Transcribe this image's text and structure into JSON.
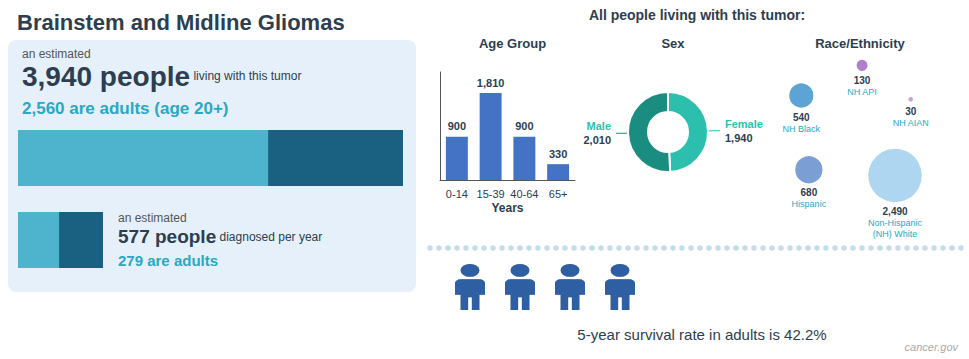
{
  "chart_data": [
    {
      "type": "bar",
      "orientation": "horizontal",
      "title": "Brainstem and Midline Gliomas",
      "annotations": [
        "an estimated",
        "3,940 people",
        "living with this tumor",
        "2,560 are adults (age 20+)"
      ],
      "values": [
        0.6497
      ],
      "xlim": [
        0,
        1
      ],
      "colors": [
        "#4EB3CC",
        "#1A6080"
      ],
      "tick_labels": false
    },
    {
      "type": "bar",
      "orientation": "horizontal",
      "annotations": [
        "an estimated",
        "577 people",
        "diagnosed per year",
        "279 are adults"
      ],
      "values": [
        0.4837
      ],
      "xlim": [
        0,
        1
      ],
      "colors": [
        "#4EB3CC",
        "#1A6080"
      ],
      "tick_labels": false
    },
    {
      "type": "bar",
      "title": "Age Group",
      "annotations": [
        "All people living with this tumor:"
      ],
      "categories": [
        "0-14",
        "15-39",
        "40-64",
        "65+"
      ],
      "values": [
        900,
        1810,
        900,
        330
      ],
      "value_labels": [
        "900",
        "1,810",
        "900",
        "330"
      ],
      "color": "#4472C4",
      "xlabel": "Years",
      "ylim": [
        0,
        2250
      ],
      "data_labels": true,
      "tick_labels": "x",
      "grid": false
    },
    {
      "type": "pie",
      "title": "Sex",
      "categories": [
        "Female",
        "Male"
      ],
      "values": [
        1940,
        2010
      ],
      "value_labels": [
        "1,940",
        "2,010"
      ],
      "colors": [
        "#2DBFAD",
        "#1A8C80"
      ],
      "data_labels": true
    },
    {
      "type": "bubble",
      "title": "Race/Ethnicity",
      "categories": [
        "Non-Hispanic\n(NH) White",
        "Hispanic",
        "NH Black",
        "NH API",
        "NH AIAN"
      ],
      "values": [
        2490,
        680,
        540,
        130,
        30
      ],
      "value_labels": [
        "2,490",
        "680",
        "540",
        "130",
        "30"
      ],
      "colors": [
        "#AED6F1",
        "#7B9FD4",
        "#5BA4D4",
        "#B07FCC",
        "#C9A0DC"
      ],
      "data_labels": true
    },
    {
      "type": "pictorial",
      "orientation": "horizontal",
      "title": "5-year survival rate in adults is 42.2%",
      "annotations": [
        "cancer.gov"
      ],
      "values": [
        4
      ],
      "xlim": [
        0,
        10
      ],
      "colors": [
        "#2E5FA3",
        "#9E9E9E"
      ],
      "tick_labels": false
    }
  ]
}
